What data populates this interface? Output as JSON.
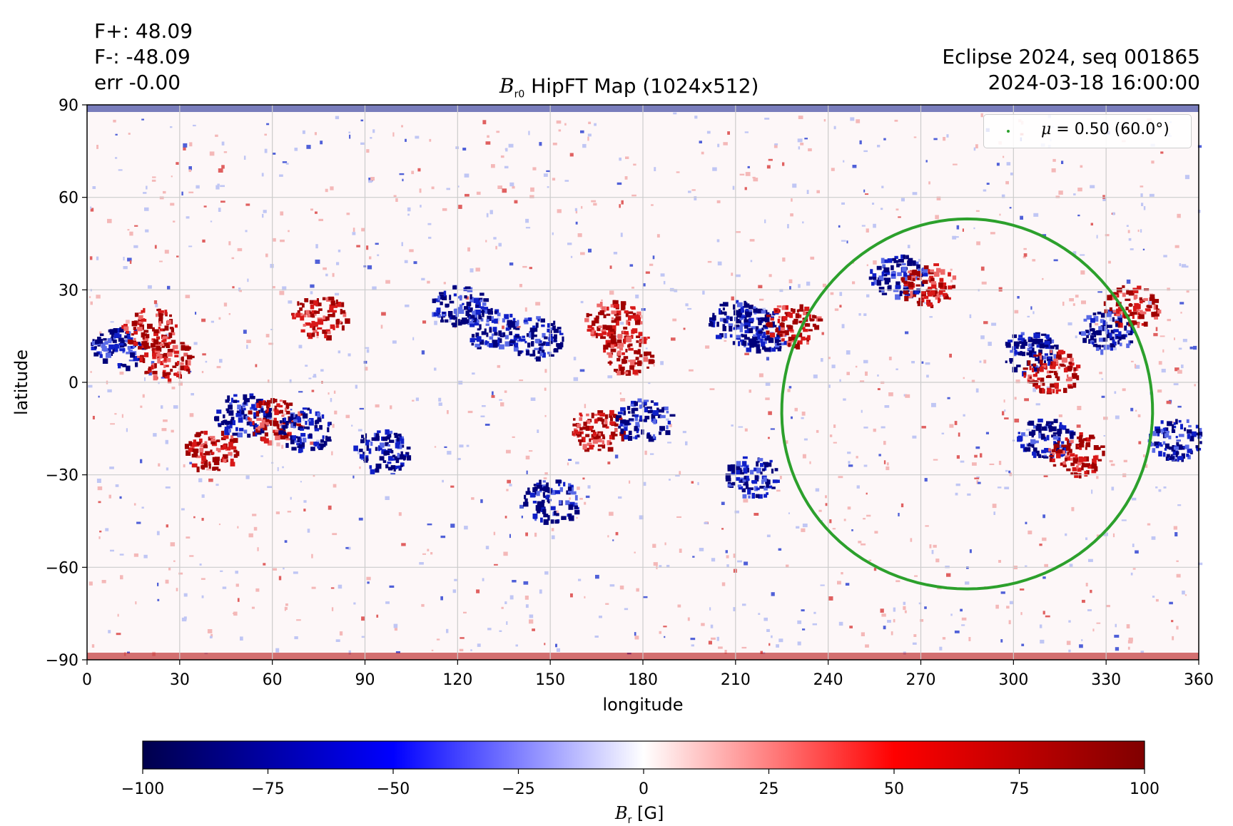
{
  "stats": {
    "f_plus": "F+: 48.09",
    "f_minus": "F-: -48.09",
    "err": "err -0.00"
  },
  "header_right": {
    "line1": "Eclipse 2024, seq 001865",
    "line2": "2024-03-18 16:00:00"
  },
  "plot_title": {
    "symbol": "B",
    "subscript": "r0",
    "text": " HipFT Map (1024x512)"
  },
  "legend": {
    "symbol": "μ",
    "text": " = 0.50 (60.0°)"
  },
  "colorbar": {
    "label_symbol": "B",
    "label_subscript": "r",
    "label_unit": " [G]",
    "ticks": [
      "−100",
      "−75",
      "−50",
      "−25",
      "0",
      "25",
      "50",
      "75",
      "100"
    ],
    "range": [
      -100,
      100
    ],
    "colormap": "seismic"
  },
  "colors": {
    "contour": "#2ca02c",
    "grid": "#cccccc",
    "positive": "#b00000",
    "negative": "#00008b"
  },
  "chart_data": {
    "type": "heatmap",
    "title": "B_r0 HipFT Map (1024x512)",
    "xlabel": "longitude",
    "ylabel": "latitude",
    "xlim": [
      0,
      360
    ],
    "ylim": [
      -90,
      90
    ],
    "xticks": [
      "0",
      "30",
      "60",
      "90",
      "120",
      "150",
      "180",
      "210",
      "240",
      "270",
      "300",
      "330",
      "360"
    ],
    "yticks": [
      "90",
      "60",
      "30",
      "0",
      "−30",
      "−60",
      "−90"
    ],
    "grid": true,
    "legend_position": "top-right",
    "active_regions": [
      {
        "lon": 10,
        "lat": 12,
        "polarity": "negative"
      },
      {
        "lon": 20,
        "lat": 18,
        "polarity": "positive"
      },
      {
        "lon": 25,
        "lat": 8,
        "polarity": "positive"
      },
      {
        "lon": 40,
        "lat": -22,
        "polarity": "positive"
      },
      {
        "lon": 50,
        "lat": -10,
        "polarity": "negative"
      },
      {
        "lon": 60,
        "lat": -12,
        "polarity": "positive"
      },
      {
        "lon": 70,
        "lat": -15,
        "polarity": "negative"
      },
      {
        "lon": 75,
        "lat": 22,
        "polarity": "positive"
      },
      {
        "lon": 95,
        "lat": -22,
        "polarity": "negative"
      },
      {
        "lon": 120,
        "lat": 25,
        "polarity": "negative"
      },
      {
        "lon": 130,
        "lat": 18,
        "polarity": "negative"
      },
      {
        "lon": 145,
        "lat": 15,
        "polarity": "negative"
      },
      {
        "lon": 150,
        "lat": -38,
        "polarity": "negative"
      },
      {
        "lon": 165,
        "lat": -15,
        "polarity": "positive"
      },
      {
        "lon": 170,
        "lat": 20,
        "polarity": "positive"
      },
      {
        "lon": 175,
        "lat": 10,
        "polarity": "positive"
      },
      {
        "lon": 180,
        "lat": -12,
        "polarity": "negative"
      },
      {
        "lon": 210,
        "lat": 20,
        "polarity": "negative"
      },
      {
        "lon": 218,
        "lat": 17,
        "polarity": "negative"
      },
      {
        "lon": 228,
        "lat": 19,
        "polarity": "positive"
      },
      {
        "lon": 215,
        "lat": -30,
        "polarity": "negative"
      },
      {
        "lon": 262,
        "lat": 35,
        "polarity": "negative"
      },
      {
        "lon": 272,
        "lat": 32,
        "polarity": "positive"
      },
      {
        "lon": 305,
        "lat": 10,
        "polarity": "negative"
      },
      {
        "lon": 312,
        "lat": 4,
        "polarity": "positive"
      },
      {
        "lon": 310,
        "lat": -18,
        "polarity": "negative"
      },
      {
        "lon": 320,
        "lat": -23,
        "polarity": "positive"
      },
      {
        "lon": 330,
        "lat": 17,
        "polarity": "negative"
      },
      {
        "lon": 338,
        "lat": 25,
        "polarity": "positive"
      },
      {
        "lon": 352,
        "lat": -18,
        "polarity": "negative"
      }
    ],
    "contour": {
      "label": "μ = 0.50 (60.0°)",
      "center_lon": 285,
      "center_lat": -7,
      "half_width_lon": 60,
      "top_lat": 53,
      "bottom_lat": -67
    },
    "colorbar_range": [
      -100,
      100
    ]
  }
}
